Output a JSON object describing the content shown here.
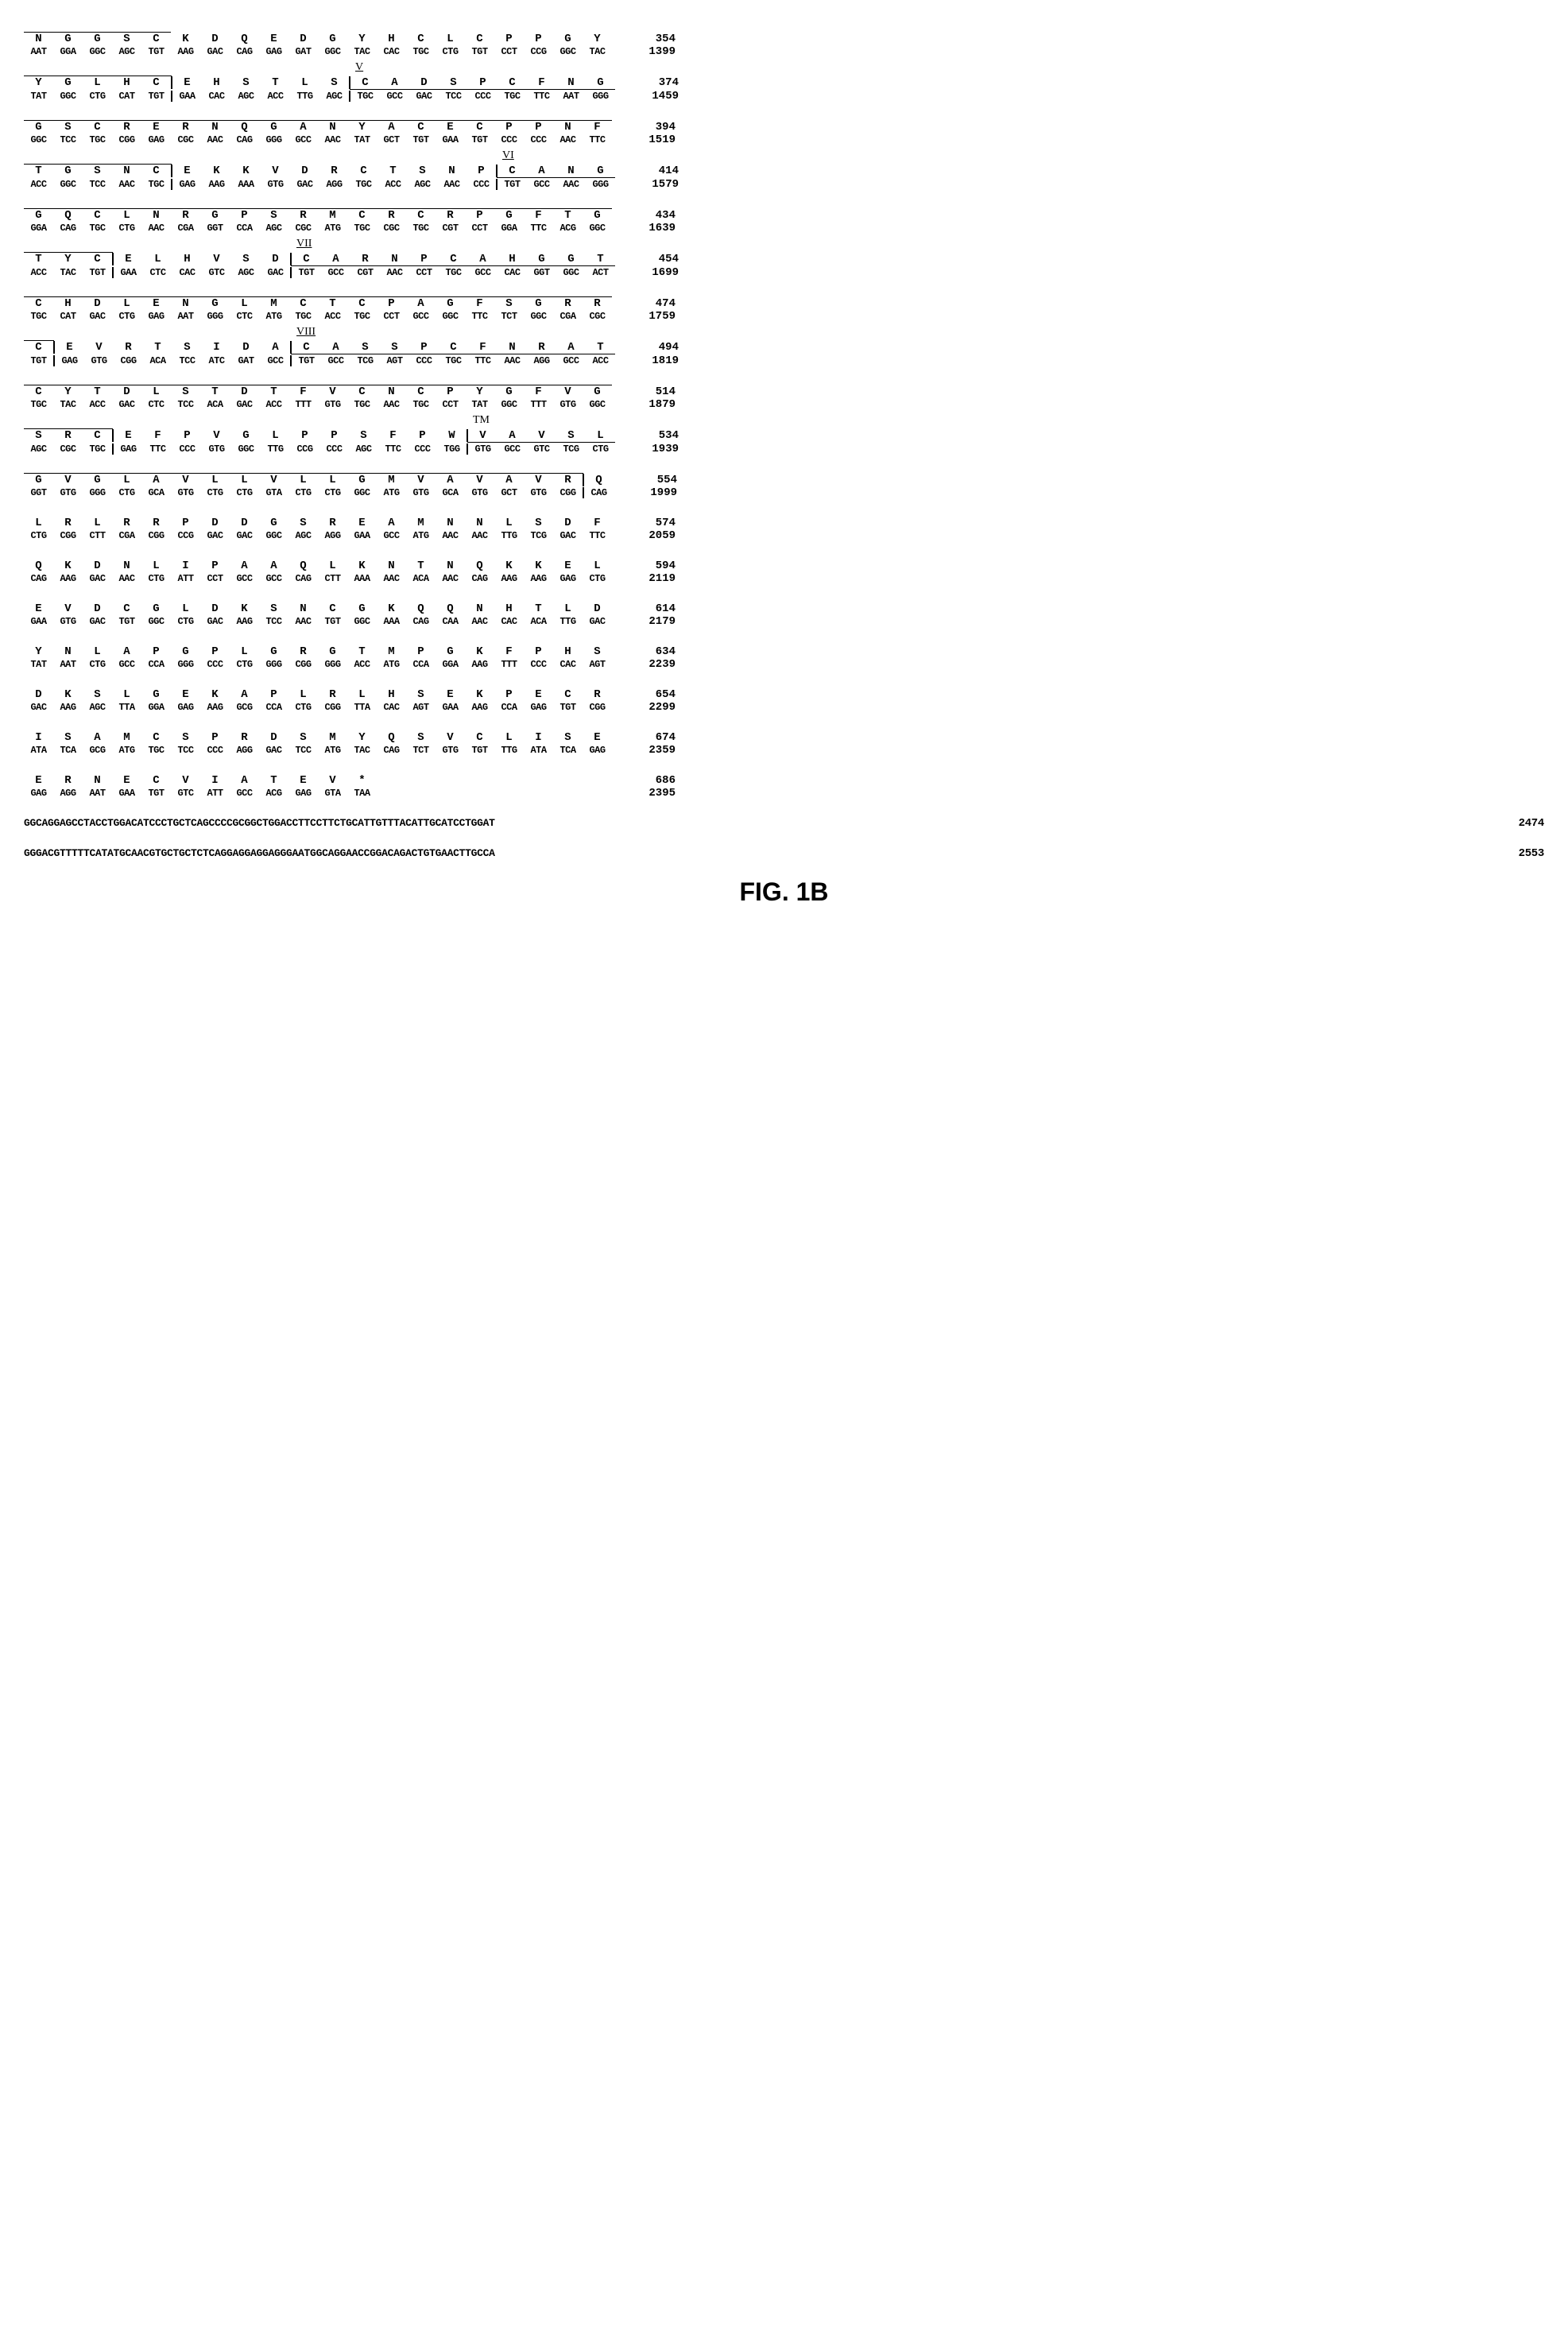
{
  "figure_label": "FIG. 1B",
  "rows": [
    {
      "aa": [
        "N",
        "G",
        "G",
        "S",
        "C",
        "K",
        "D",
        "Q",
        "E",
        "D",
        "G",
        "Y",
        "H",
        "C",
        "L",
        "C",
        "P",
        "P",
        "G",
        "Y"
      ],
      "nt": [
        "AAT",
        "GGA",
        "GGC",
        "AGC",
        "TGT",
        "AAG",
        "GAC",
        "CAG",
        "GAG",
        "GAT",
        "GGC",
        "TAC",
        "CAC",
        "TGC",
        "CTG",
        "TGT",
        "CCT",
        "CCG",
        "GGC",
        "TAC"
      ],
      "aa_num": 354,
      "nt_num": 1399,
      "overline": [
        0,
        1,
        2,
        3,
        4
      ],
      "annotation": null
    },
    {
      "aa": [
        "Y",
        "G",
        "L",
        "H",
        "C",
        "E",
        "H",
        "S",
        "T",
        "L",
        "S",
        "C",
        "A",
        "D",
        "S",
        "P",
        "C",
        "F",
        "N",
        "G"
      ],
      "nt": [
        "TAT",
        "GGC",
        "CTG",
        "CAT",
        "TGT",
        "GAA",
        "CAC",
        "AGC",
        "ACC",
        "TTG",
        "AGC",
        "TGC",
        "GCC",
        "GAC",
        "TCC",
        "CCC",
        "TGC",
        "TTC",
        "AAT",
        "GGG"
      ],
      "aa_num": 374,
      "nt_num": 1459,
      "overline": [
        0,
        1,
        2,
        3,
        4
      ],
      "underline": [
        11,
        12,
        13,
        14,
        15,
        16,
        17,
        18,
        19
      ],
      "box_left": [
        5,
        11
      ],
      "box_right": [
        4,
        10
      ],
      "annotation": {
        "text": "V",
        "pos": 11,
        "roman": true
      }
    },
    {
      "aa": [
        "G",
        "S",
        "C",
        "R",
        "E",
        "R",
        "N",
        "Q",
        "G",
        "A",
        "N",
        "Y",
        "A",
        "C",
        "E",
        "C",
        "P",
        "P",
        "N",
        "F"
      ],
      "nt": [
        "GGC",
        "TCC",
        "TGC",
        "CGG",
        "GAG",
        "CGC",
        "AAC",
        "CAG",
        "GGG",
        "GCC",
        "AAC",
        "TAT",
        "GCT",
        "TGT",
        "GAA",
        "TGT",
        "CCC",
        "CCC",
        "AAC",
        "TTC"
      ],
      "aa_num": 394,
      "nt_num": 1519,
      "overline": [
        0,
        1,
        2,
        3,
        4,
        5,
        6,
        7,
        8,
        9,
        10,
        11,
        12,
        13,
        14,
        15,
        16,
        17,
        18,
        19
      ],
      "annotation": null
    },
    {
      "aa": [
        "T",
        "G",
        "S",
        "N",
        "C",
        "E",
        "K",
        "K",
        "V",
        "D",
        "R",
        "C",
        "T",
        "S",
        "N",
        "P",
        "C",
        "A",
        "N",
        "G"
      ],
      "nt": [
        "ACC",
        "GGC",
        "TCC",
        "AAC",
        "TGC",
        "GAG",
        "AAG",
        "AAA",
        "GTG",
        "GAC",
        "AGG",
        "TGC",
        "ACC",
        "AGC",
        "AAC",
        "CCC",
        "TGT",
        "GCC",
        "AAC",
        "GGG"
      ],
      "aa_num": 414,
      "nt_num": 1579,
      "overline": [
        0,
        1,
        2,
        3,
        4
      ],
      "underline": [
        16,
        17,
        18,
        19
      ],
      "box_left": [
        5,
        16
      ],
      "box_right": [
        4,
        15
      ],
      "annotation": {
        "text": "VI",
        "pos": 16,
        "roman": true
      }
    },
    {
      "aa": [
        "G",
        "Q",
        "C",
        "L",
        "N",
        "R",
        "G",
        "P",
        "S",
        "R",
        "M",
        "C",
        "R",
        "C",
        "R",
        "P",
        "G",
        "F",
        "T",
        "G"
      ],
      "nt": [
        "GGA",
        "CAG",
        "TGC",
        "CTG",
        "AAC",
        "CGA",
        "GGT",
        "CCA",
        "AGC",
        "CGC",
        "ATG",
        "TGC",
        "CGC",
        "TGC",
        "CGT",
        "CCT",
        "GGA",
        "TTC",
        "ACG",
        "GGC"
      ],
      "aa_num": 434,
      "nt_num": 1639,
      "overline": [
        0,
        1,
        2,
        3,
        4,
        5,
        6,
        7,
        8,
        9,
        10,
        11,
        12,
        13,
        14,
        15,
        16,
        17,
        18,
        19
      ],
      "annotation": null
    },
    {
      "aa": [
        "T",
        "Y",
        "C",
        "E",
        "L",
        "H",
        "V",
        "S",
        "D",
        "C",
        "A",
        "R",
        "N",
        "P",
        "C",
        "A",
        "H",
        "G",
        "G",
        "T"
      ],
      "nt": [
        "ACC",
        "TAC",
        "TGT",
        "GAA",
        "CTC",
        "CAC",
        "GTC",
        "AGC",
        "GAC",
        "TGT",
        "GCC",
        "CGT",
        "AAC",
        "CCT",
        "TGC",
        "GCC",
        "CAC",
        "GGT",
        "GGC",
        "ACT"
      ],
      "aa_num": 454,
      "nt_num": 1699,
      "overline": [
        0,
        1,
        2
      ],
      "underline": [
        9,
        10,
        11,
        12,
        13,
        14,
        15,
        16,
        17,
        18,
        19
      ],
      "box_left": [
        3,
        9
      ],
      "box_right": [
        2,
        8
      ],
      "annotation": {
        "text": "VII",
        "pos": 9,
        "roman": true
      }
    },
    {
      "aa": [
        "C",
        "H",
        "D",
        "L",
        "E",
        "N",
        "G",
        "L",
        "M",
        "C",
        "T",
        "C",
        "P",
        "A",
        "G",
        "F",
        "S",
        "G",
        "R",
        "R"
      ],
      "nt": [
        "TGC",
        "CAT",
        "GAC",
        "CTG",
        "GAG",
        "AAT",
        "GGG",
        "CTC",
        "ATG",
        "TGC",
        "ACC",
        "TGC",
        "CCT",
        "GCC",
        "GGC",
        "TTC",
        "TCT",
        "GGC",
        "CGA",
        "CGC"
      ],
      "aa_num": 474,
      "nt_num": 1759,
      "overline": [
        0,
        1,
        2,
        3,
        4,
        5,
        6,
        7,
        8,
        9,
        10,
        11,
        12,
        13,
        14,
        15,
        16,
        17,
        18,
        19
      ],
      "annotation": null
    },
    {
      "aa": [
        "C",
        "E",
        "V",
        "R",
        "T",
        "S",
        "I",
        "D",
        "A",
        "C",
        "A",
        "S",
        "S",
        "P",
        "C",
        "F",
        "N",
        "R",
        "A",
        "T"
      ],
      "nt": [
        "TGT",
        "GAG",
        "GTG",
        "CGG",
        "ACA",
        "TCC",
        "ATC",
        "GAT",
        "GCC",
        "TGT",
        "GCC",
        "TCG",
        "AGT",
        "CCC",
        "TGC",
        "TTC",
        "AAC",
        "AGG",
        "GCC",
        "ACC"
      ],
      "aa_num": 494,
      "nt_num": 1819,
      "overline": [
        0
      ],
      "underline": [
        9,
        10,
        11,
        12,
        13,
        14,
        15,
        16,
        17,
        18,
        19
      ],
      "box_left": [
        1,
        9
      ],
      "box_right": [
        0,
        8
      ],
      "annotation": {
        "text": "VIII",
        "pos": 9,
        "roman": true
      }
    },
    {
      "aa": [
        "C",
        "Y",
        "T",
        "D",
        "L",
        "S",
        "T",
        "D",
        "T",
        "F",
        "V",
        "C",
        "N",
        "C",
        "P",
        "Y",
        "G",
        "F",
        "V",
        "G"
      ],
      "nt": [
        "TGC",
        "TAC",
        "ACC",
        "GAC",
        "CTC",
        "TCC",
        "ACA",
        "GAC",
        "ACC",
        "TTT",
        "GTG",
        "TGC",
        "AAC",
        "TGC",
        "CCT",
        "TAT",
        "GGC",
        "TTT",
        "GTG",
        "GGC"
      ],
      "aa_num": 514,
      "nt_num": 1879,
      "overline": [
        0,
        1,
        2,
        3,
        4,
        5,
        6,
        7,
        8,
        9,
        10,
        11,
        12,
        13,
        14,
        15,
        16,
        17,
        18,
        19
      ],
      "annotation": null
    },
    {
      "aa": [
        "S",
        "R",
        "C",
        "E",
        "F",
        "P",
        "V",
        "G",
        "L",
        "P",
        "P",
        "S",
        "F",
        "P",
        "W",
        "V",
        "A",
        "V",
        "S",
        "L"
      ],
      "nt": [
        "AGC",
        "CGC",
        "TGC",
        "GAG",
        "TTC",
        "CCC",
        "GTG",
        "GGC",
        "TTG",
        "CCG",
        "CCC",
        "AGC",
        "TTC",
        "CCC",
        "TGG",
        "GTG",
        "GCC",
        "GTC",
        "TCG",
        "CTG"
      ],
      "aa_num": 534,
      "nt_num": 1939,
      "overline": [
        0,
        1,
        2
      ],
      "underline": [
        15,
        16,
        17,
        18,
        19
      ],
      "box_left": [
        3,
        15
      ],
      "box_right": [
        2,
        14
      ],
      "annotation": {
        "text": "TM",
        "pos": 15,
        "roman": false
      }
    },
    {
      "aa": [
        "G",
        "V",
        "G",
        "L",
        "A",
        "V",
        "L",
        "L",
        "V",
        "L",
        "L",
        "G",
        "M",
        "V",
        "A",
        "V",
        "A",
        "V",
        "R",
        "Q"
      ],
      "nt": [
        "GGT",
        "GTG",
        "GGG",
        "CTG",
        "GCA",
        "GTG",
        "CTG",
        "CTG",
        "GTA",
        "CTG",
        "CTG",
        "GGC",
        "ATG",
        "GTG",
        "GCA",
        "GTG",
        "GCT",
        "GTG",
        "CGG",
        "CAG"
      ],
      "aa_num": 554,
      "nt_num": 1999,
      "overline": [
        0,
        1,
        2,
        3,
        4,
        5,
        6,
        7,
        8,
        9,
        10,
        11,
        12,
        13,
        14,
        15,
        16,
        17,
        18
      ],
      "box_left": [
        19
      ],
      "box_right": [
        18
      ],
      "annotation": null
    },
    {
      "aa": [
        "L",
        "R",
        "L",
        "R",
        "R",
        "P",
        "D",
        "D",
        "G",
        "S",
        "R",
        "E",
        "A",
        "M",
        "N",
        "N",
        "L",
        "S",
        "D",
        "F"
      ],
      "nt": [
        "CTG",
        "CGG",
        "CTT",
        "CGA",
        "CGG",
        "CCG",
        "GAC",
        "GAC",
        "GGC",
        "AGC",
        "AGG",
        "GAA",
        "GCC",
        "ATG",
        "AAC",
        "AAC",
        "TTG",
        "TCG",
        "GAC",
        "TTC"
      ],
      "aa_num": 574,
      "nt_num": 2059,
      "annotation": null
    },
    {
      "aa": [
        "Q",
        "K",
        "D",
        "N",
        "L",
        "I",
        "P",
        "A",
        "A",
        "Q",
        "L",
        "K",
        "N",
        "T",
        "N",
        "Q",
        "K",
        "K",
        "E",
        "L"
      ],
      "nt": [
        "CAG",
        "AAG",
        "GAC",
        "AAC",
        "CTG",
        "ATT",
        "CCT",
        "GCC",
        "GCC",
        "CAG",
        "CTT",
        "AAA",
        "AAC",
        "ACA",
        "AAC",
        "CAG",
        "AAG",
        "AAG",
        "GAG",
        "CTG"
      ],
      "aa_num": 594,
      "nt_num": 2119,
      "annotation": null
    },
    {
      "aa": [
        "E",
        "V",
        "D",
        "C",
        "G",
        "L",
        "D",
        "K",
        "S",
        "N",
        "C",
        "G",
        "K",
        "Q",
        "Q",
        "N",
        "H",
        "T",
        "L",
        "D"
      ],
      "nt": [
        "GAA",
        "GTG",
        "GAC",
        "TGT",
        "GGC",
        "CTG",
        "GAC",
        "AAG",
        "TCC",
        "AAC",
        "TGT",
        "GGC",
        "AAA",
        "CAG",
        "CAA",
        "AAC",
        "CAC",
        "ACA",
        "TTG",
        "GAC"
      ],
      "aa_num": 614,
      "nt_num": 2179,
      "annotation": null
    },
    {
      "aa": [
        "Y",
        "N",
        "L",
        "A",
        "P",
        "G",
        "P",
        "L",
        "G",
        "R",
        "G",
        "T",
        "M",
        "P",
        "G",
        "K",
        "F",
        "P",
        "H",
        "S"
      ],
      "nt": [
        "TAT",
        "AAT",
        "CTG",
        "GCC",
        "CCA",
        "GGG",
        "CCC",
        "CTG",
        "GGG",
        "CGG",
        "GGG",
        "ACC",
        "ATG",
        "CCA",
        "GGA",
        "AAG",
        "TTT",
        "CCC",
        "CAC",
        "AGT"
      ],
      "aa_num": 634,
      "nt_num": 2239,
      "annotation": null
    },
    {
      "aa": [
        "D",
        "K",
        "S",
        "L",
        "G",
        "E",
        "K",
        "A",
        "P",
        "L",
        "R",
        "L",
        "H",
        "S",
        "E",
        "K",
        "P",
        "E",
        "C",
        "R"
      ],
      "nt": [
        "GAC",
        "AAG",
        "AGC",
        "TTA",
        "GGA",
        "GAG",
        "AAG",
        "GCG",
        "CCA",
        "CTG",
        "CGG",
        "TTA",
        "CAC",
        "AGT",
        "GAA",
        "AAG",
        "CCA",
        "GAG",
        "TGT",
        "CGG"
      ],
      "aa_num": 654,
      "nt_num": 2299,
      "annotation": null
    },
    {
      "aa": [
        "I",
        "S",
        "A",
        "M",
        "C",
        "S",
        "P",
        "R",
        "D",
        "S",
        "M",
        "Y",
        "Q",
        "S",
        "V",
        "C",
        "L",
        "I",
        "S",
        "E"
      ],
      "nt": [
        "ATA",
        "TCA",
        "GCG",
        "ATG",
        "TGC",
        "TCC",
        "CCC",
        "AGG",
        "GAC",
        "TCC",
        "ATG",
        "TAC",
        "CAG",
        "TCT",
        "GTG",
        "TGT",
        "TTG",
        "ATA",
        "TCA",
        "GAG"
      ],
      "aa_num": 674,
      "nt_num": 2359,
      "annotation": null
    },
    {
      "aa": [
        "E",
        "R",
        "N",
        "E",
        "C",
        "V",
        "I",
        "A",
        "T",
        "E",
        "V",
        "*",
        "",
        "",
        "",
        "",
        "",
        "",
        "",
        ""
      ],
      "nt": [
        "GAG",
        "AGG",
        "AAT",
        "GAA",
        "TGT",
        "GTC",
        "ATT",
        "GCC",
        "ACG",
        "GAG",
        "GTA",
        "TAA",
        "",
        "",
        "",
        "",
        "",
        "",
        "",
        ""
      ],
      "aa_num": 686,
      "nt_num": 2395,
      "annotation": null
    }
  ],
  "long_rows": [
    {
      "seq": "GGCAGGAGCCTACCTGGACATCCCTGCTCAGCCCCGCGGCTGGACCTTCCTTCTGCATTGTTTACATTGCATCCTGGAT",
      "num": 2474
    },
    {
      "seq": "GGGACGTTTTTCATATGCAACGTGCTGCTCTCAGGAGGAGGAGGGAATGGCAGGAACCGGACAGACTGTGAACTTGCCA",
      "num": 2553
    }
  ],
  "colors": {
    "text": "#000000",
    "background": "#ffffff",
    "border": "#000000"
  },
  "font": {
    "main": "Courier New",
    "label": "Arial",
    "label_size": 32,
    "seq_size": 14,
    "nt_size": 12
  }
}
